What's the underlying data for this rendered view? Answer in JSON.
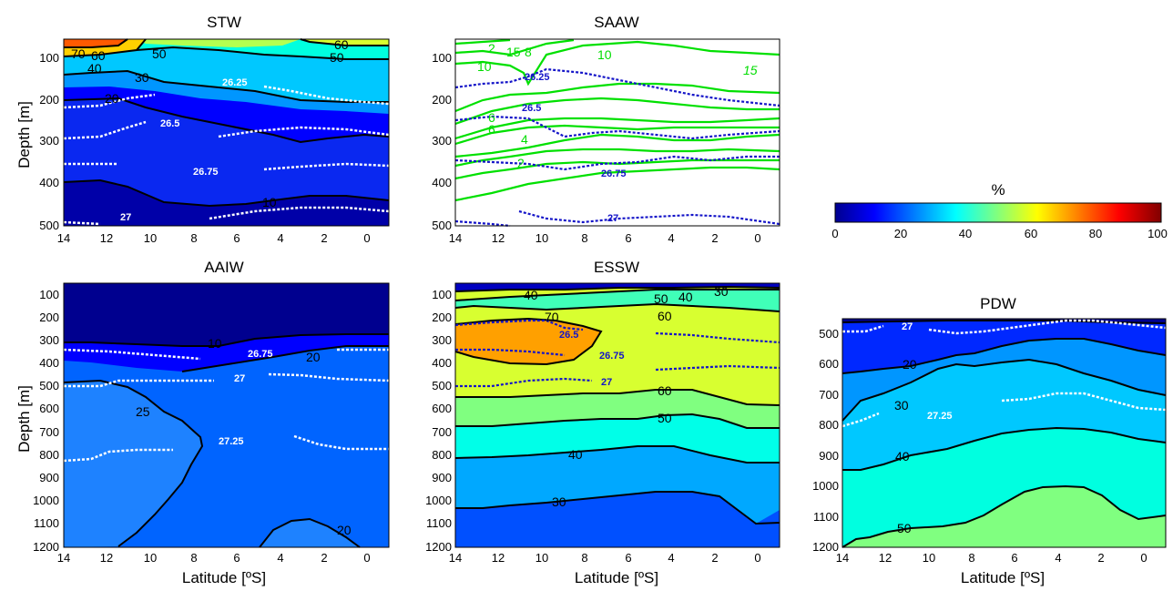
{
  "colorbar": {
    "label": "%",
    "ticks": [
      "0",
      "20",
      "40",
      "60",
      "80",
      "100"
    ],
    "colormap": "jet",
    "range": [
      0,
      100
    ]
  },
  "chart_data": [
    {
      "type": "heatmap",
      "panel": "STW",
      "title": "STW",
      "xlabel": "",
      "ylabel": "Depth [m]",
      "xlim": [
        14,
        -1
      ],
      "ylim": [
        500,
        50
      ],
      "x_ticks": [
        "14",
        "12",
        "10",
        "8",
        "6",
        "4",
        "2",
        "0"
      ],
      "y_ticks": [
        "100",
        "200",
        "300",
        "400",
        "500"
      ],
      "contour_labels": [
        "70",
        "60",
        "50",
        "60",
        "50",
        "40",
        "30",
        "20",
        "10"
      ],
      "isopycnal_labels": [
        "26.25",
        "26.5",
        "26.75",
        "27"
      ]
    },
    {
      "type": "heatmap",
      "panel": "SAAW",
      "title": "SAAW",
      "xlabel": "",
      "ylabel": "",
      "xlim": [
        14,
        -1
      ],
      "ylim": [
        500,
        50
      ],
      "x_ticks": [
        "14",
        "12",
        "10",
        "8",
        "6",
        "4",
        "2",
        "0"
      ],
      "y_ticks": [
        "100",
        "200",
        "300",
        "400",
        "500"
      ],
      "contour_labels": [
        "2",
        "15",
        "8",
        "10",
        "10",
        "15",
        "6",
        "6",
        "4",
        "2"
      ],
      "isopycnal_labels": [
        "26.25",
        "26.5",
        "26.75",
        "27"
      ]
    },
    {
      "type": "heatmap",
      "panel": "AAIW",
      "title": "AAIW",
      "xlabel": "Latitude [ºS]",
      "ylabel": "Depth [m]",
      "xlim": [
        14,
        -1
      ],
      "ylim": [
        1200,
        50
      ],
      "x_ticks": [
        "14",
        "12",
        "10",
        "8",
        "6",
        "4",
        "2",
        "0"
      ],
      "y_ticks": [
        "100",
        "200",
        "300",
        "400",
        "500",
        "600",
        "700",
        "800",
        "900",
        "1000",
        "1100",
        "1200"
      ],
      "contour_labels": [
        "10",
        "20",
        "25",
        "20"
      ],
      "isopycnal_labels": [
        "26.75",
        "27",
        "27.25"
      ]
    },
    {
      "type": "heatmap",
      "panel": "ESSW",
      "title": "ESSW",
      "xlabel": "Latitude [ºS]",
      "ylabel": "",
      "xlim": [
        14,
        -1
      ],
      "ylim": [
        1200,
        50
      ],
      "x_ticks": [
        "14",
        "12",
        "10",
        "8",
        "6",
        "4",
        "2",
        "0"
      ],
      "y_ticks": [
        "100",
        "200",
        "300",
        "400",
        "500",
        "600",
        "700",
        "800",
        "900",
        "1000",
        "1100",
        "1200"
      ],
      "contour_labels": [
        "40",
        "50",
        "40",
        "30",
        "70",
        "60",
        "60",
        "50",
        "40",
        "30"
      ],
      "isopycnal_labels": [
        "26.5",
        "26.75",
        "27"
      ]
    },
    {
      "type": "heatmap",
      "panel": "PDW",
      "title": "PDW",
      "xlabel": "Latitude [ºS]",
      "ylabel": "",
      "xlim": [
        14,
        -1
      ],
      "ylim": [
        1200,
        450
      ],
      "x_ticks": [
        "14",
        "12",
        "10",
        "8",
        "6",
        "4",
        "2",
        "0"
      ],
      "y_ticks": [
        "500",
        "600",
        "700",
        "800",
        "900",
        "1000",
        "1100",
        "1200"
      ],
      "contour_labels": [
        "20",
        "30",
        "40",
        "50"
      ],
      "isopycnal_labels": [
        "27",
        "27.25"
      ]
    }
  ]
}
